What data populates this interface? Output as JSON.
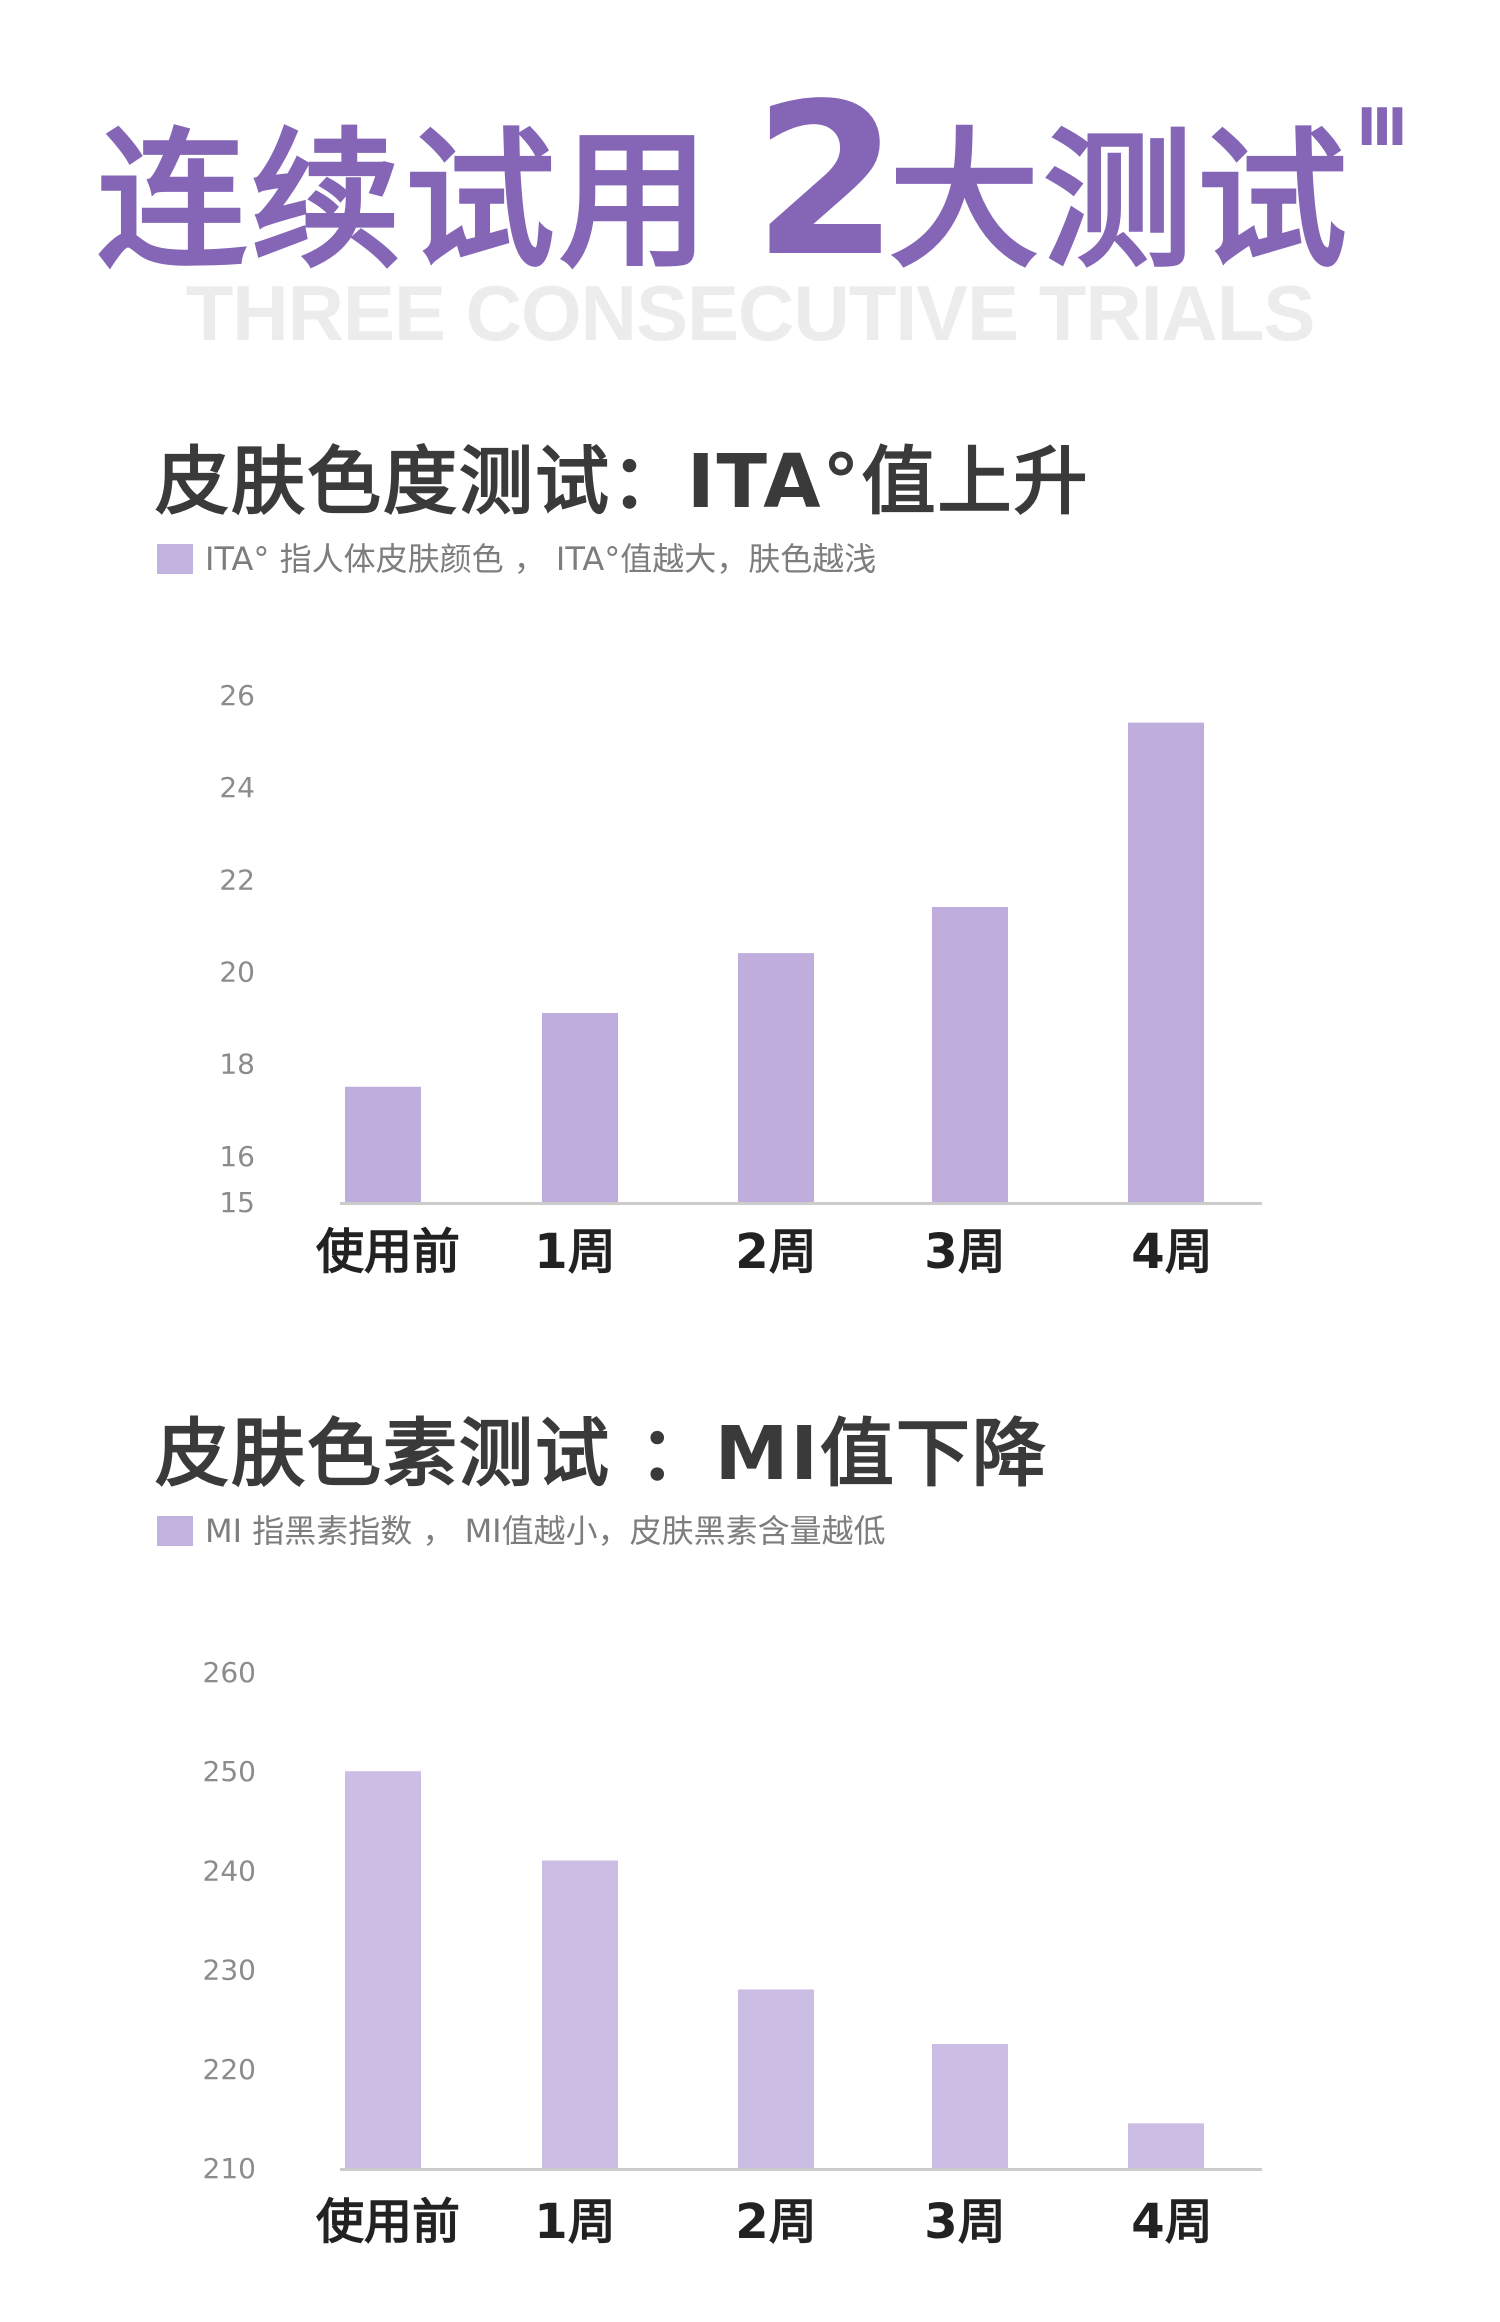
{
  "header": {
    "title_part1": "连续试用",
    "title_number": "2",
    "title_part2": "大测试",
    "title_mark": "III",
    "subtitle": "THREE CONSECUTIVE TRIALS"
  },
  "colors": {
    "accent": "#8465b6",
    "bar_chart1": "#bfaddd",
    "bar_chart2": "#cbbde4",
    "axis": "#cccccc",
    "tick_text": "#8c8c8c",
    "category_text": "#222222"
  },
  "sections": [
    {
      "title": "皮肤色度测试：ITA°值上升",
      "note": "ITA° 指人体皮肤颜色 ， ITA°值越大，肤色越浅"
    },
    {
      "title": "皮肤色素测试 ：MI值下降",
      "note": "MI 指黑素指数 ， MI值越小，皮肤黑素含量越低"
    }
  ],
  "chart_data": [
    {
      "type": "bar",
      "categories": [
        "使用前",
        "1周",
        "2周",
        "3周",
        "4周"
      ],
      "values": [
        17.5,
        19.1,
        20.4,
        21.4,
        25.4
      ],
      "ylim": [
        15,
        26
      ],
      "yticks": [
        15,
        16,
        18,
        20,
        22,
        24,
        26
      ],
      "grid": false,
      "legend": "none"
    },
    {
      "type": "bar",
      "categories": [
        "使用前",
        "1周",
        "2周",
        "3周",
        "4周"
      ],
      "values": [
        250,
        241,
        228,
        222.5,
        214.5
      ],
      "ylim": [
        210,
        260
      ],
      "yticks": [
        210,
        220,
        230,
        240,
        250,
        260
      ],
      "grid": false,
      "legend": "none"
    }
  ]
}
